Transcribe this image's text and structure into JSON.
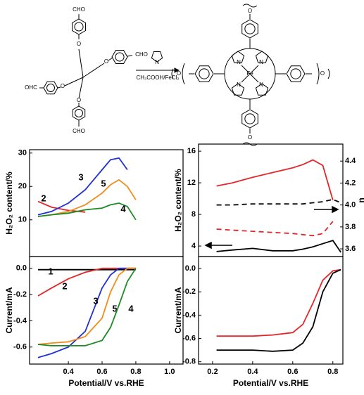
{
  "scheme": {
    "aldehyde_labels": [
      "CHO",
      "CHO",
      "CHO",
      "OHC"
    ],
    "ether_labels": [
      "O",
      "O",
      "O",
      "O"
    ],
    "pyrrole_label": "N",
    "conditions": "CH₃COOH/FeCl₂",
    "porphyrin_n": [
      "N",
      "N",
      "N",
      "N"
    ],
    "metal": "Fe",
    "linker_o": [
      "O",
      "O",
      "O",
      "O"
    ]
  },
  "chart_data": [
    {
      "type": "line",
      "y_label": "H₂O₂ content/%",
      "x": [
        0.22,
        0.3,
        0.4,
        0.5,
        0.6,
        0.65,
        0.7,
        0.75,
        0.8
      ],
      "xlim": [
        0.17,
        1.08
      ],
      "ylim": [
        -1,
        31
      ],
      "yticks": [
        10,
        20,
        30
      ],
      "series": [
        {
          "name": "2",
          "color": "#e3262a",
          "values": [
            15.5,
            13.8,
            12.8,
            12.3,
            null,
            null,
            null,
            null,
            null
          ]
        },
        {
          "name": "3",
          "color": "#1f2fd6",
          "values": [
            11.5,
            12.5,
            15,
            19,
            25,
            28,
            28.5,
            25,
            null
          ]
        },
        {
          "name": "5",
          "color": "#f28c1b",
          "values": [
            11,
            11.5,
            12.5,
            14.5,
            18,
            20.5,
            22,
            20,
            16
          ]
        },
        {
          "name": "4",
          "color": "#1e8a25",
          "values": [
            11,
            11.5,
            12,
            13,
            13.5,
            14.5,
            15,
            14,
            10
          ]
        }
      ]
    },
    {
      "type": "line",
      "y_label": "Current/mA",
      "x_label": "Potential/V vs.RHE",
      "x": [
        0.22,
        0.3,
        0.4,
        0.5,
        0.6,
        0.65,
        0.7,
        0.75,
        0.8
      ],
      "xlim": [
        0.17,
        1.08
      ],
      "xticks": [
        0.4,
        0.6,
        0.8,
        {
          "value": 1,
          "label": "1.0"
        }
      ],
      "ylim": [
        -0.73,
        0.09
      ],
      "yticks": [
        {
          "value": 0,
          "label": "0.0"
        },
        -0.2,
        -0.4,
        -0.6
      ],
      "series": [
        {
          "name": "1",
          "color": "#000000",
          "values": [
            -0.01,
            -0.01,
            -0.01,
            -0.01,
            -0.01,
            -0.01,
            -0.01,
            -0.01,
            -0.01
          ]
        },
        {
          "name": "2",
          "color": "#e3262a",
          "values": [
            -0.21,
            -0.15,
            -0.08,
            -0.03,
            0,
            0,
            0,
            0,
            0
          ]
        },
        {
          "name": "3",
          "color": "#1f2fd6",
          "values": [
            -0.68,
            -0.65,
            -0.6,
            -0.48,
            -0.15,
            -0.05,
            0,
            0,
            0
          ]
        },
        {
          "name": "5",
          "color": "#f28c1b",
          "values": [
            -0.58,
            -0.57,
            -0.56,
            -0.52,
            -0.38,
            -0.18,
            -0.05,
            0,
            0
          ]
        },
        {
          "name": "4",
          "color": "#1e8a25",
          "values": [
            -0.58,
            -0.59,
            -0.59,
            -0.59,
            -0.55,
            -0.45,
            -0.28,
            -0.1,
            0
          ]
        }
      ]
    },
    {
      "type": "line",
      "y_label": "H₂O₂ content/%",
      "y2_label": "n",
      "x": [
        0.22,
        0.3,
        0.4,
        0.5,
        0.6,
        0.65,
        0.7,
        0.75,
        0.8,
        0.84
      ],
      "xlim": [
        0.13,
        0.85
      ],
      "ylim": [
        2.67,
        16.9
      ],
      "yticks": [
        4,
        8,
        12,
        16
      ],
      "y2lim": [
        3.53,
        4.555
      ],
      "y2ticks": [
        3.6,
        3.8,
        {
          "value": 4,
          "label": "4.0"
        },
        4.2,
        4.4
      ],
      "series": [
        {
          "color": "#e3262a",
          "values": [
            11.6,
            12,
            12.7,
            13.3,
            13.9,
            14.3,
            14.9,
            14.2,
            9.8,
            null
          ]
        },
        {
          "color": "#000000",
          "values": [
            3.3,
            3.5,
            3.7,
            3.4,
            3.4,
            3.6,
            3.9,
            4.3,
            4.7,
            3.2
          ]
        },
        {
          "color": "#000000",
          "dash": true,
          "axis": "y2",
          "values": [
            4.0,
            4.0,
            4.01,
            4.01,
            4.01,
            4.01,
            4.02,
            4.03,
            4.05,
            4.02
          ]
        },
        {
          "color": "#e3262a",
          "dash": true,
          "axis": "y2",
          "values": [
            3.78,
            3.77,
            3.76,
            3.75,
            3.74,
            3.73,
            3.72,
            3.74,
            3.85,
            null
          ]
        }
      ]
    },
    {
      "type": "line",
      "y_label": "Current/mA",
      "x_label": "Potential/V vs.RHE",
      "x": [
        0.22,
        0.3,
        0.4,
        0.5,
        0.6,
        0.65,
        0.7,
        0.75,
        0.8,
        0.84
      ],
      "xlim": [
        0.13,
        0.85
      ],
      "xticks": [
        0.2,
        0.4,
        0.6,
        0.8
      ],
      "ylim": [
        -0.82,
        0.103
      ],
      "yticks": [
        {
          "value": 0,
          "label": "0.0"
        },
        -0.2,
        -0.4,
        -0.6,
        -0.8
      ],
      "series": [
        {
          "color": "#e3262a",
          "values": [
            -0.58,
            -0.58,
            -0.58,
            -0.57,
            -0.55,
            -0.48,
            -0.3,
            -0.1,
            -0.02,
            -0.01
          ]
        },
        {
          "color": "#000000",
          "values": [
            -0.7,
            -0.7,
            -0.7,
            -0.71,
            -0.7,
            -0.64,
            -0.5,
            -0.2,
            -0.04,
            -0.01
          ]
        }
      ]
    }
  ]
}
